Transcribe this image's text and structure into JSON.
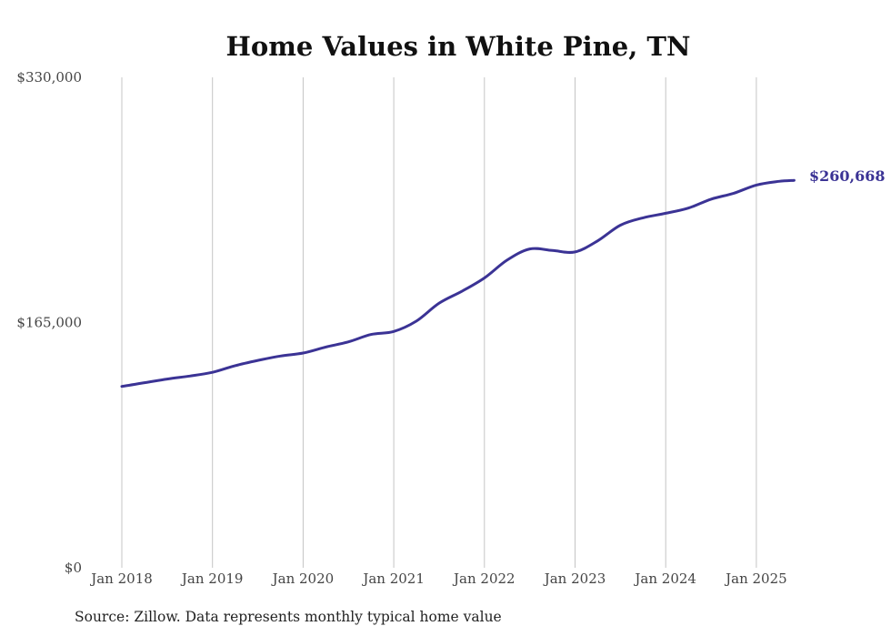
{
  "chart_data": {
    "type": "line",
    "title": "Home Values in White Pine, TN",
    "xlabel": "",
    "ylabel": "",
    "x_tick_labels": [
      "Jan 2018",
      "Jan 2019",
      "Jan 2020",
      "Jan 2021",
      "Jan 2022",
      "Jan 2023",
      "Jan 2024",
      "Jan 2025"
    ],
    "y_tick_labels": [
      "$0",
      "$165,000",
      "$330,000"
    ],
    "ylim": [
      0,
      330000
    ],
    "grid": "vertical at x ticks",
    "line_color": "#3b3395",
    "end_label": "$260,668",
    "series": [
      {
        "values": [
          {
            "x": "2018-01",
            "y": 122000
          },
          {
            "x": "2018-04",
            "y": 124500
          },
          {
            "x": "2018-07",
            "y": 127000
          },
          {
            "x": "2018-10",
            "y": 129000
          },
          {
            "x": "2019-01",
            "y": 131500
          },
          {
            "x": "2019-04",
            "y": 136000
          },
          {
            "x": "2019-07",
            "y": 139500
          },
          {
            "x": "2019-10",
            "y": 142500
          },
          {
            "x": "2020-01",
            "y": 144500
          },
          {
            "x": "2020-04",
            "y": 148500
          },
          {
            "x": "2020-07",
            "y": 152000
          },
          {
            "x": "2020-10",
            "y": 157000
          },
          {
            "x": "2021-01",
            "y": 159000
          },
          {
            "x": "2021-04",
            "y": 166000
          },
          {
            "x": "2021-07",
            "y": 178000
          },
          {
            "x": "2021-10",
            "y": 186000
          },
          {
            "x": "2022-01",
            "y": 195000
          },
          {
            "x": "2022-04",
            "y": 207000
          },
          {
            "x": "2022-07",
            "y": 214500
          },
          {
            "x": "2022-10",
            "y": 213500
          },
          {
            "x": "2023-01",
            "y": 212500
          },
          {
            "x": "2023-04",
            "y": 220000
          },
          {
            "x": "2023-07",
            "y": 230500
          },
          {
            "x": "2023-10",
            "y": 235500
          },
          {
            "x": "2024-01",
            "y": 238500
          },
          {
            "x": "2024-04",
            "y": 242000
          },
          {
            "x": "2024-07",
            "y": 248000
          },
          {
            "x": "2024-10",
            "y": 252000
          },
          {
            "x": "2025-01",
            "y": 257500
          },
          {
            "x": "2025-04",
            "y": 260000
          },
          {
            "x": "2025-06",
            "y": 260668
          }
        ]
      }
    ]
  },
  "footer": {
    "source": "Source: Zillow. Data represents monthly typical home value"
  }
}
